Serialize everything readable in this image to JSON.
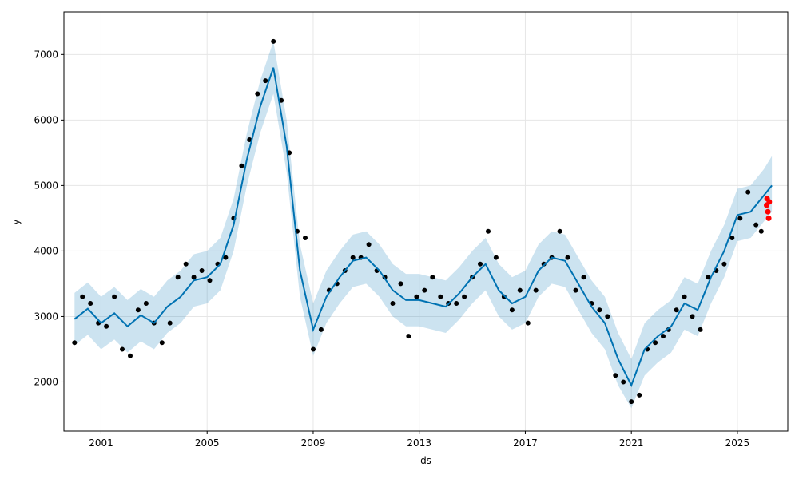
{
  "chart_data": {
    "type": "line",
    "title": "",
    "xlabel": "ds",
    "ylabel": "y",
    "xlim": [
      1999.6,
      2026.9
    ],
    "ylim": [
      1250,
      7650
    ],
    "x_ticks": [
      2001,
      2005,
      2009,
      2013,
      2017,
      2021,
      2025
    ],
    "x_tick_labels": [
      "2001",
      "2005",
      "2009",
      "2013",
      "2017",
      "2021",
      "2025"
    ],
    "y_ticks": [
      2000,
      3000,
      4000,
      5000,
      6000,
      7000
    ],
    "y_tick_labels": [
      "2000",
      "3000",
      "4000",
      "5000",
      "6000",
      "7000"
    ],
    "grid": true,
    "colors": {
      "observed": "#000000",
      "forecast_line": "#0072B2",
      "uncertainty_band": "#0072B2",
      "recent_actuals": "#ff0000"
    },
    "series": [
      {
        "role": "observed",
        "marker": "dot",
        "x": [
          2000.0,
          2000.3,
          2000.6,
          2000.9,
          2001.2,
          2001.5,
          2001.8,
          2002.1,
          2002.4,
          2002.7,
          2003.0,
          2003.3,
          2003.6,
          2003.9,
          2004.2,
          2004.5,
          2004.8,
          2005.1,
          2005.4,
          2005.7,
          2006.0,
          2006.3,
          2006.6,
          2006.9,
          2007.2,
          2007.5,
          2007.8,
          2008.1,
          2008.4,
          2008.7,
          2009.0,
          2009.3,
          2009.6,
          2009.9,
          2010.2,
          2010.5,
          2010.8,
          2011.1,
          2011.4,
          2011.7,
          2012.0,
          2012.3,
          2012.6,
          2012.9,
          2013.2,
          2013.5,
          2013.8,
          2014.1,
          2014.4,
          2014.7,
          2015.0,
          2015.3,
          2015.6,
          2015.9,
          2016.2,
          2016.5,
          2016.8,
          2017.1,
          2017.4,
          2017.7,
          2018.0,
          2018.3,
          2018.6,
          2018.9,
          2019.2,
          2019.5,
          2019.8,
          2020.1,
          2020.4,
          2020.7,
          2021.0,
          2021.3,
          2021.6,
          2021.9,
          2022.2,
          2022.4,
          2022.7,
          2023.0,
          2023.3,
          2023.6,
          2023.9,
          2024.2,
          2024.5,
          2024.8,
          2025.1,
          2025.4,
          2025.7,
          2025.9
        ],
        "y": [
          2600,
          3300,
          3200,
          2900,
          2850,
          3300,
          2500,
          2400,
          3100,
          3200,
          2900,
          2600,
          2900,
          3600,
          3800,
          3600,
          3700,
          3550,
          3800,
          3900,
          4500,
          5300,
          5700,
          6400,
          6600,
          7200,
          6300,
          5500,
          4300,
          4200,
          2500,
          2800,
          3400,
          3500,
          3700,
          3900,
          3900,
          4100,
          3700,
          3600,
          3200,
          3500,
          2700,
          3300,
          3400,
          3600,
          3300,
          3200,
          3200,
          3300,
          3600,
          3800,
          4300,
          3900,
          3300,
          3100,
          3400,
          2900,
          3400,
          3800,
          3900,
          4300,
          3900,
          3400,
          3600,
          3200,
          3100,
          3000,
          2100,
          2000,
          1700,
          1800,
          2500,
          2600,
          2700,
          2800,
          3100,
          3300,
          3000,
          2800,
          3600,
          3700,
          3800,
          4200,
          4500,
          4900,
          4400,
          4300
        ]
      },
      {
        "role": "forecast",
        "name": "",
        "x": [
          2000.0,
          2000.5,
          2001.0,
          2001.5,
          2002.0,
          2002.5,
          2003.0,
          2003.5,
          2004.0,
          2004.5,
          2005.0,
          2005.5,
          2006.0,
          2006.5,
          2007.0,
          2007.5,
          2008.0,
          2008.5,
          2009.0,
          2009.5,
          2010.0,
          2010.5,
          2011.0,
          2011.5,
          2012.0,
          2012.5,
          2013.0,
          2013.5,
          2014.0,
          2014.5,
          2015.0,
          2015.5,
          2016.0,
          2016.5,
          2017.0,
          2017.5,
          2018.0,
          2018.5,
          2019.0,
          2019.5,
          2020.0,
          2020.5,
          2021.0,
          2021.5,
          2022.0,
          2022.5,
          2023.0,
          2023.5,
          2024.0,
          2024.5,
          2025.0,
          2025.5,
          2026.0,
          2026.3
        ],
        "y": [
          2960,
          3120,
          2900,
          3050,
          2850,
          3020,
          2900,
          3150,
          3300,
          3550,
          3600,
          3800,
          4400,
          5400,
          6200,
          6800,
          5600,
          3700,
          2800,
          3300,
          3600,
          3850,
          3900,
          3700,
          3400,
          3250,
          3250,
          3200,
          3150,
          3350,
          3600,
          3800,
          3400,
          3200,
          3300,
          3700,
          3900,
          3850,
          3500,
          3150,
          2900,
          2350,
          1950,
          2500,
          2700,
          2850,
          3200,
          3100,
          3600,
          4000,
          4550,
          4600,
          4850,
          5000
        ],
        "lower": [
          2560,
          2720,
          2500,
          2650,
          2450,
          2620,
          2500,
          2750,
          2900,
          3150,
          3200,
          3400,
          4000,
          5000,
          5800,
          6400,
          5200,
          3300,
          2400,
          2900,
          3200,
          3450,
          3500,
          3300,
          3000,
          2850,
          2850,
          2800,
          2750,
          2950,
          3200,
          3400,
          3000,
          2800,
          2900,
          3300,
          3500,
          3450,
          3100,
          2750,
          2500,
          1950,
          1600,
          2100,
          2300,
          2450,
          2800,
          2700,
          3200,
          3600,
          4150,
          4200,
          4450,
          4600
        ],
        "upper": [
          3360,
          3520,
          3300,
          3450,
          3250,
          3420,
          3300,
          3550,
          3700,
          3950,
          4000,
          4200,
          4800,
          5800,
          6600,
          7200,
          6000,
          4100,
          3200,
          3700,
          4000,
          4250,
          4300,
          4100,
          3800,
          3650,
          3650,
          3600,
          3550,
          3750,
          4000,
          4200,
          3800,
          3600,
          3700,
          4100,
          4300,
          4250,
          3900,
          3550,
          3300,
          2750,
          2350,
          2900,
          3100,
          3250,
          3600,
          3500,
          4000,
          4400,
          4950,
          5000,
          5250,
          5450
        ]
      },
      {
        "role": "recent_actuals",
        "marker": "dot",
        "x": [
          2026.1,
          2026.12,
          2026.15,
          2026.18,
          2026.2
        ],
        "y": [
          4700,
          4800,
          4600,
          4500,
          4750
        ]
      }
    ]
  }
}
